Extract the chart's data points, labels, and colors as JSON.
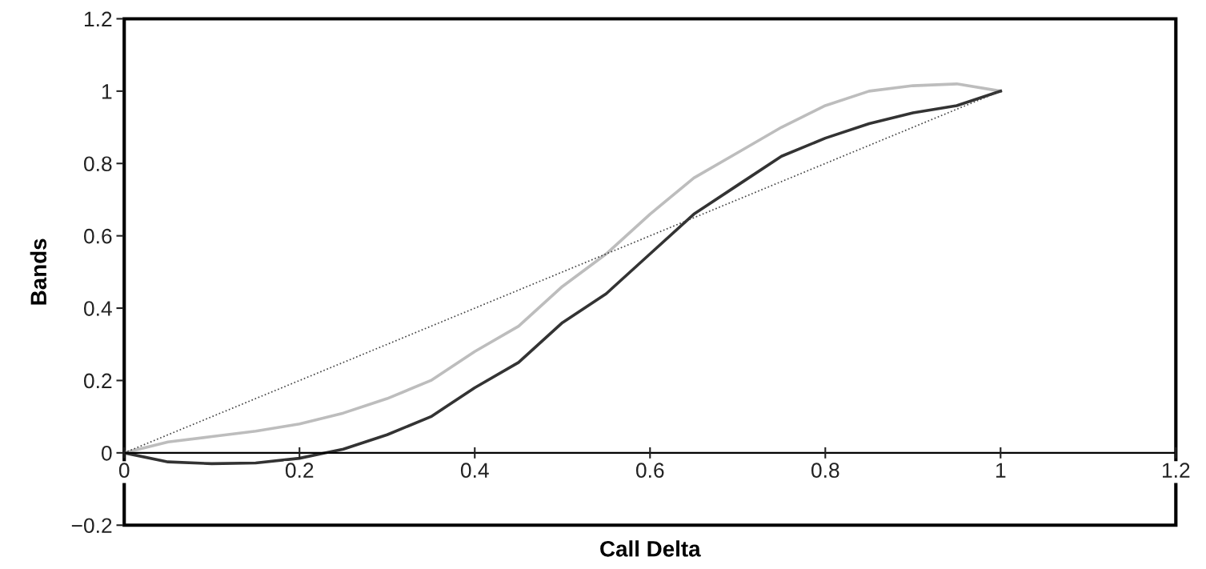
{
  "chart_data": {
    "type": "line",
    "xlabel": "Call Delta",
    "ylabel": "Bands",
    "xlim": [
      0,
      1.2
    ],
    "ylim": [
      -0.2,
      1.2
    ],
    "xticks": [
      0,
      0.2,
      0.4,
      0.6,
      0.8,
      1,
      1.2
    ],
    "yticks": [
      {
        "value": -0.2,
        "label": "−0.2"
      },
      0,
      0.2,
      0.4,
      0.6,
      0.8,
      1,
      1.2
    ],
    "grid": false,
    "legend": false,
    "marker": "none",
    "series": [
      {
        "color": "#bdbdbd",
        "line_style": "solid",
        "x": [
          0,
          0.05,
          0.1,
          0.15,
          0.2,
          0.25,
          0.3,
          0.35,
          0.4,
          0.45,
          0.5,
          0.55,
          0.6,
          0.65,
          0.7,
          0.75,
          0.8,
          0.85,
          0.9,
          0.95,
          1
        ],
        "values": [
          0,
          0.03,
          0.045,
          0.06,
          0.08,
          0.11,
          0.15,
          0.2,
          0.28,
          0.35,
          0.46,
          0.55,
          0.66,
          0.76,
          0.83,
          0.9,
          0.96,
          1.0,
          1.015,
          1.02,
          1.0
        ]
      },
      {
        "color": "#333333",
        "line_style": "solid",
        "x": [
          0,
          0.05,
          0.1,
          0.15,
          0.2,
          0.23,
          0.25,
          0.3,
          0.35,
          0.4,
          0.45,
          0.5,
          0.55,
          0.6,
          0.65,
          0.7,
          0.75,
          0.8,
          0.85,
          0.9,
          0.95,
          1
        ],
        "values": [
          0,
          -0.025,
          -0.03,
          -0.028,
          -0.015,
          0,
          0.01,
          0.05,
          0.1,
          0.18,
          0.25,
          0.36,
          0.44,
          0.55,
          0.66,
          0.74,
          0.82,
          0.87,
          0.91,
          0.94,
          0.96,
          1
        ]
      },
      {
        "color": "#444444",
        "line_style": "dotted",
        "x": [
          0,
          1
        ],
        "values": [
          0,
          1
        ]
      }
    ]
  }
}
